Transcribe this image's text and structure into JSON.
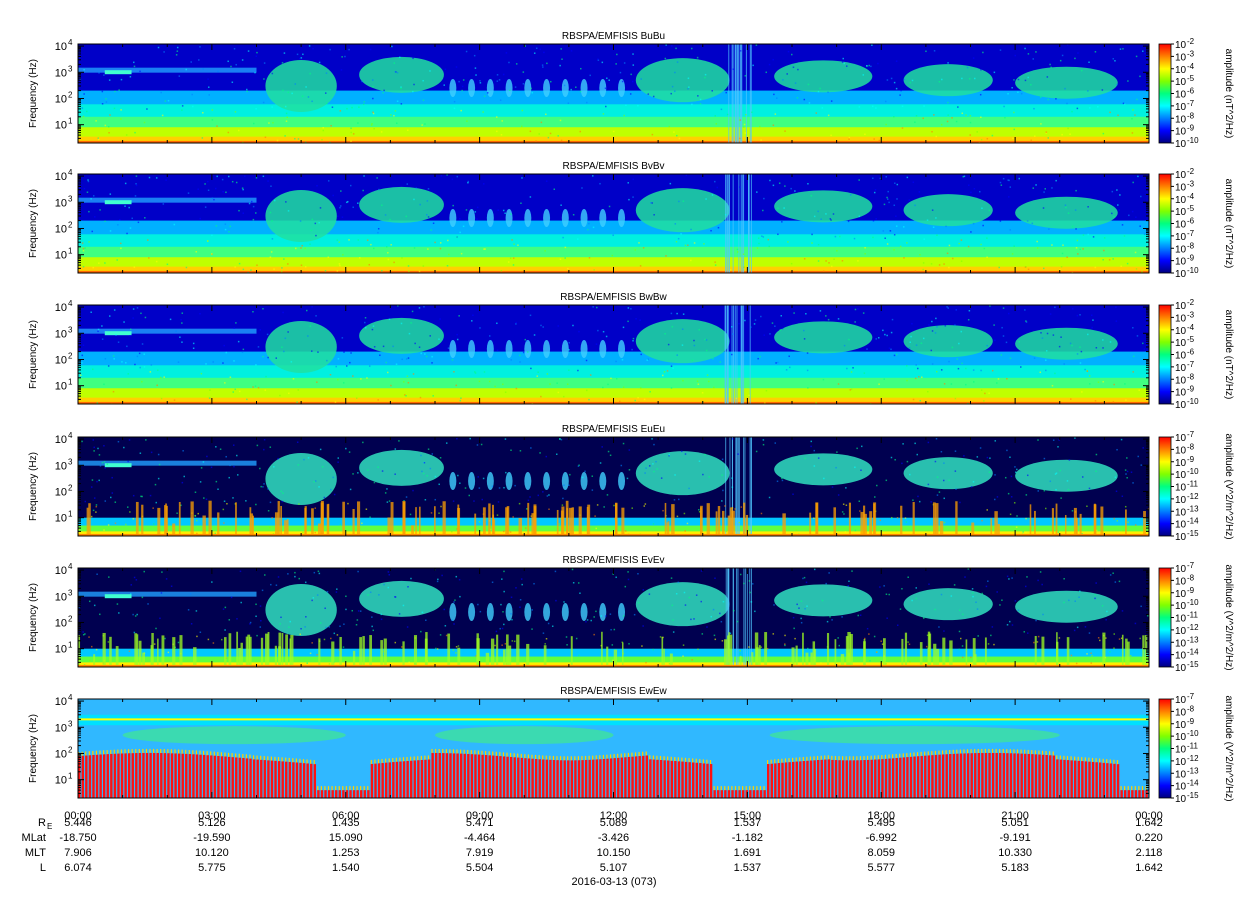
{
  "chart_data": {
    "type": "heatmap",
    "x_range": [
      "00:00",
      "00:00"
    ],
    "x_ticks": [
      "00:00",
      "03:00",
      "06:00",
      "09:00",
      "12:00",
      "15:00",
      "18:00",
      "21:00",
      "00:00"
    ],
    "date_label": "2016-03-13 (073)",
    "ephemeris": [
      {
        "label": "R",
        "sub": "E",
        "values": [
          "5.446",
          "5.126",
          "1.435",
          "5.471",
          "5.089",
          "1.537",
          "5.495",
          "5.051",
          "1.642"
        ]
      },
      {
        "label": "MLat",
        "sub": "",
        "values": [
          "-18.750",
          "-19.590",
          "15.090",
          "-4.464",
          "-3.426",
          "-1.182",
          "-6.992",
          "-9.191",
          "0.220"
        ]
      },
      {
        "label": "MLT",
        "sub": "",
        "values": [
          "7.906",
          "10.120",
          "1.253",
          "7.919",
          "10.150",
          "1.691",
          "8.059",
          "10.330",
          "2.118"
        ]
      },
      {
        "label": "L",
        "sub": "",
        "values": [
          "6.074",
          "5.775",
          "1.540",
          "5.504",
          "5.107",
          "1.537",
          "5.577",
          "5.183",
          "1.642"
        ]
      }
    ],
    "panels": [
      {
        "title": "RBSPA/EMFISIS  BuBu",
        "ylabel": "Frequency (Hz)",
        "y_ticks": [
          "10",
          "10",
          "10",
          "10"
        ],
        "y_tick_exps": [
          "1",
          "2",
          "3",
          "4"
        ],
        "y_range_hz": [
          2,
          12000
        ],
        "y_scale": "log",
        "cbar_label": "amplitude (nT^2/Hz)",
        "cbar_ticks": [
          "10",
          "10",
          "10",
          "10",
          "10",
          "10",
          "10",
          "10",
          "10"
        ],
        "cbar_exps": [
          "-2",
          "-3",
          "-4",
          "-5",
          "-6",
          "-7",
          "-8",
          "-9",
          "-10"
        ],
        "cbar_range": [
          1e-10,
          0.01
        ]
      },
      {
        "title": "RBSPA/EMFISIS  BvBv",
        "ylabel": "Frequency (Hz)",
        "y_ticks": [
          "10",
          "10",
          "10",
          "10"
        ],
        "y_tick_exps": [
          "1",
          "2",
          "3",
          "4"
        ],
        "y_range_hz": [
          2,
          12000
        ],
        "y_scale": "log",
        "cbar_label": "amplitude (nT^2/Hz)",
        "cbar_ticks": [
          "10",
          "10",
          "10",
          "10",
          "10",
          "10",
          "10",
          "10",
          "10"
        ],
        "cbar_exps": [
          "-2",
          "-3",
          "-4",
          "-5",
          "-6",
          "-7",
          "-8",
          "-9",
          "-10"
        ],
        "cbar_range": [
          1e-10,
          0.01
        ]
      },
      {
        "title": "RBSPA/EMFISIS  BwBw",
        "ylabel": "Frequency (Hz)",
        "y_ticks": [
          "10",
          "10",
          "10",
          "10"
        ],
        "y_tick_exps": [
          "1",
          "2",
          "3",
          "4"
        ],
        "y_range_hz": [
          2,
          12000
        ],
        "y_scale": "log",
        "cbar_label": "amplitude (nT^2/Hz)",
        "cbar_ticks": [
          "10",
          "10",
          "10",
          "10",
          "10",
          "10",
          "10",
          "10",
          "10"
        ],
        "cbar_exps": [
          "-2",
          "-3",
          "-4",
          "-5",
          "-6",
          "-7",
          "-8",
          "-9",
          "-10"
        ],
        "cbar_range": [
          1e-10,
          0.01
        ]
      },
      {
        "title": "RBSPA/EMFISIS  EuEu",
        "ylabel": "Frequency (Hz)",
        "y_ticks": [
          "10",
          "10",
          "10",
          "10"
        ],
        "y_tick_exps": [
          "1",
          "2",
          "3",
          "4"
        ],
        "y_range_hz": [
          2,
          12000
        ],
        "y_scale": "log",
        "cbar_label": "amplitude (V^2/m^2/Hz)",
        "cbar_ticks": [
          "10",
          "10",
          "10",
          "10",
          "10",
          "10",
          "10",
          "10",
          "10"
        ],
        "cbar_exps": [
          "-7",
          "-8",
          "-9",
          "-10",
          "-11",
          "-12",
          "-13",
          "-14",
          "-15"
        ],
        "cbar_range": [
          1e-15,
          1e-07
        ]
      },
      {
        "title": "RBSPA/EMFISIS  EvEv",
        "ylabel": "Frequency (Hz)",
        "y_ticks": [
          "10",
          "10",
          "10",
          "10"
        ],
        "y_tick_exps": [
          "1",
          "2",
          "3",
          "4"
        ],
        "y_range_hz": [
          2,
          12000
        ],
        "y_scale": "log",
        "cbar_label": "amplitude (V^2/m^2/Hz)",
        "cbar_ticks": [
          "10",
          "10",
          "10",
          "10",
          "10",
          "10",
          "10",
          "10",
          "10"
        ],
        "cbar_exps": [
          "-7",
          "-8",
          "-9",
          "-10",
          "-11",
          "-12",
          "-13",
          "-14",
          "-15"
        ],
        "cbar_range": [
          1e-15,
          1e-07
        ]
      },
      {
        "title": "RBSPA/EMFISIS  EwEw",
        "ylabel": "Frequency (Hz)",
        "y_ticks": [
          "10",
          "10",
          "10",
          "10"
        ],
        "y_tick_exps": [
          "1",
          "2",
          "3",
          "4"
        ],
        "y_range_hz": [
          2,
          12000
        ],
        "y_scale": "log",
        "cbar_label": "amplitude (V^2/m^2/Hz)",
        "cbar_ticks": [
          "10",
          "10",
          "10",
          "10",
          "10",
          "10",
          "10",
          "10",
          "10"
        ],
        "cbar_exps": [
          "-7",
          "-8",
          "-9",
          "-10",
          "-11",
          "-12",
          "-13",
          "-14",
          "-15"
        ],
        "cbar_range": [
          1e-15,
          1e-07
        ]
      }
    ],
    "colormap": [
      "#00007f",
      "#0000ff",
      "#0080ff",
      "#00ffff",
      "#00ff80",
      "#80ff00",
      "#ffff00",
      "#ff8000",
      "#ff0000"
    ]
  }
}
